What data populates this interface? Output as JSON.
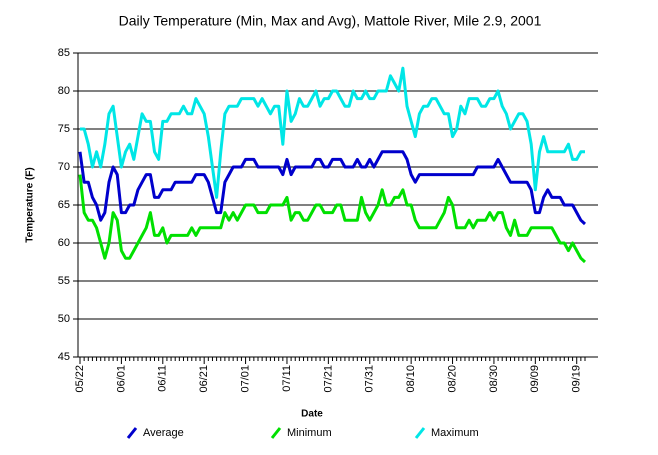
{
  "chart_data": {
    "type": "line",
    "title": "Daily Temperature (Min, Max and Avg), Mattole River, Mile 2.9, 2001",
    "x_label": "Date",
    "y_label": "Temperature (F)",
    "categories": [
      "05/22",
      null,
      null,
      null,
      null,
      null,
      null,
      null,
      null,
      null,
      "06/01",
      null,
      null,
      null,
      null,
      null,
      null,
      null,
      null,
      null,
      "06/11",
      null,
      null,
      null,
      null,
      null,
      null,
      null,
      null,
      null,
      "06/21",
      null,
      null,
      null,
      null,
      null,
      null,
      null,
      null,
      null,
      "07/01",
      null,
      null,
      null,
      null,
      null,
      null,
      null,
      null,
      null,
      "07/11",
      null,
      null,
      null,
      null,
      null,
      null,
      null,
      null,
      null,
      "07/21",
      null,
      null,
      null,
      null,
      null,
      null,
      null,
      null,
      null,
      "07/31",
      null,
      null,
      null,
      null,
      null,
      null,
      null,
      null,
      null,
      "08/10",
      null,
      null,
      null,
      null,
      null,
      null,
      null,
      null,
      null,
      "08/20",
      null,
      null,
      null,
      null,
      null,
      null,
      null,
      null,
      null,
      "08/30",
      null,
      null,
      null,
      null,
      null,
      null,
      null,
      null,
      null,
      "09/09",
      null,
      null,
      null,
      null,
      null,
      null,
      null,
      null,
      null,
      "09/19",
      null,
      null
    ],
    "series": [
      {
        "name": "Average",
        "color": "#0000cc",
        "values": [
          72,
          68,
          68,
          66,
          65,
          63,
          64,
          68,
          70,
          69,
          64,
          64,
          65,
          65,
          67,
          68,
          69,
          69,
          66,
          66,
          67,
          67,
          67,
          68,
          68,
          68,
          68,
          68,
          69,
          69,
          69,
          68,
          66,
          64,
          64,
          68,
          69,
          70,
          70,
          70,
          71,
          71,
          71,
          70,
          70,
          70,
          70,
          70,
          70,
          69,
          71,
          69,
          70,
          70,
          70,
          70,
          70,
          71,
          71,
          70,
          70,
          71,
          71,
          71,
          70,
          70,
          70,
          71,
          70,
          70,
          71,
          70,
          71,
          72,
          72,
          72,
          72,
          72,
          72,
          71,
          69,
          68,
          69,
          69,
          69,
          69,
          69,
          69,
          69,
          69,
          69,
          69,
          69,
          69,
          69,
          69,
          70,
          70,
          70,
          70,
          70,
          71,
          70,
          69,
          68,
          68,
          68,
          68,
          68,
          67,
          64,
          64,
          66,
          67,
          66,
          66,
          66,
          65,
          65,
          65,
          64,
          63,
          62.5
        ]
      },
      {
        "name": "Minimum",
        "color": "#00e000",
        "values": [
          69,
          64,
          63,
          63,
          62,
          60,
          58,
          60,
          64,
          63,
          59,
          58,
          58,
          59,
          60,
          61,
          62,
          64,
          61,
          61,
          62,
          60,
          61,
          61,
          61,
          61,
          61,
          62,
          61,
          62,
          62,
          62,
          62,
          62,
          62,
          64,
          63,
          64,
          63,
          64,
          65,
          65,
          65,
          64,
          64,
          64,
          65,
          65,
          65,
          65,
          66,
          63,
          64,
          64,
          63,
          63,
          64,
          65,
          65,
          64,
          64,
          64,
          65,
          65,
          63,
          63,
          63,
          63,
          66,
          64,
          63,
          64,
          65,
          67,
          65,
          65,
          66,
          66,
          67,
          65,
          65,
          63,
          62,
          62,
          62,
          62,
          62,
          63,
          64,
          66,
          65,
          62,
          62,
          62,
          63,
          62,
          63,
          63,
          63,
          64,
          63,
          64,
          64,
          62,
          61,
          63,
          61,
          61,
          61,
          62,
          62,
          62,
          62,
          62,
          62,
          61,
          60,
          60,
          59,
          60,
          59,
          58,
          57.5
        ]
      },
      {
        "name": "Maximum",
        "color": "#00e6e6",
        "values": [
          75,
          75,
          73,
          70,
          72,
          70,
          73,
          77,
          78,
          74,
          70,
          72,
          73,
          71,
          74,
          77,
          76,
          76,
          72,
          71,
          76,
          76,
          77,
          77,
          77,
          78,
          77,
          77,
          79,
          78,
          77,
          74,
          70,
          66,
          72,
          77,
          78,
          78,
          78,
          79,
          79,
          79,
          79,
          78,
          79,
          78,
          77,
          78,
          78,
          73,
          80,
          76,
          77,
          79,
          78,
          78,
          79,
          80,
          78,
          79,
          79,
          80,
          80,
          79,
          78,
          78,
          80,
          79,
          79,
          80,
          79,
          79,
          80,
          80,
          80,
          82,
          81,
          80,
          83,
          78,
          76,
          74,
          77,
          78,
          78,
          79,
          79,
          78,
          77,
          77,
          74,
          75,
          78,
          77,
          79,
          79,
          79,
          78,
          78,
          79,
          79,
          80,
          78,
          77,
          75,
          76,
          77,
          77,
          76,
          73,
          67,
          72,
          74,
          72,
          72,
          72,
          72,
          72,
          73,
          71,
          71,
          72,
          72
        ]
      }
    ],
    "ylim": [
      45,
      85
    ],
    "yticks": [
      45,
      50,
      55,
      60,
      65,
      70,
      75,
      80,
      85
    ],
    "grid": true,
    "legend": "bottom"
  }
}
